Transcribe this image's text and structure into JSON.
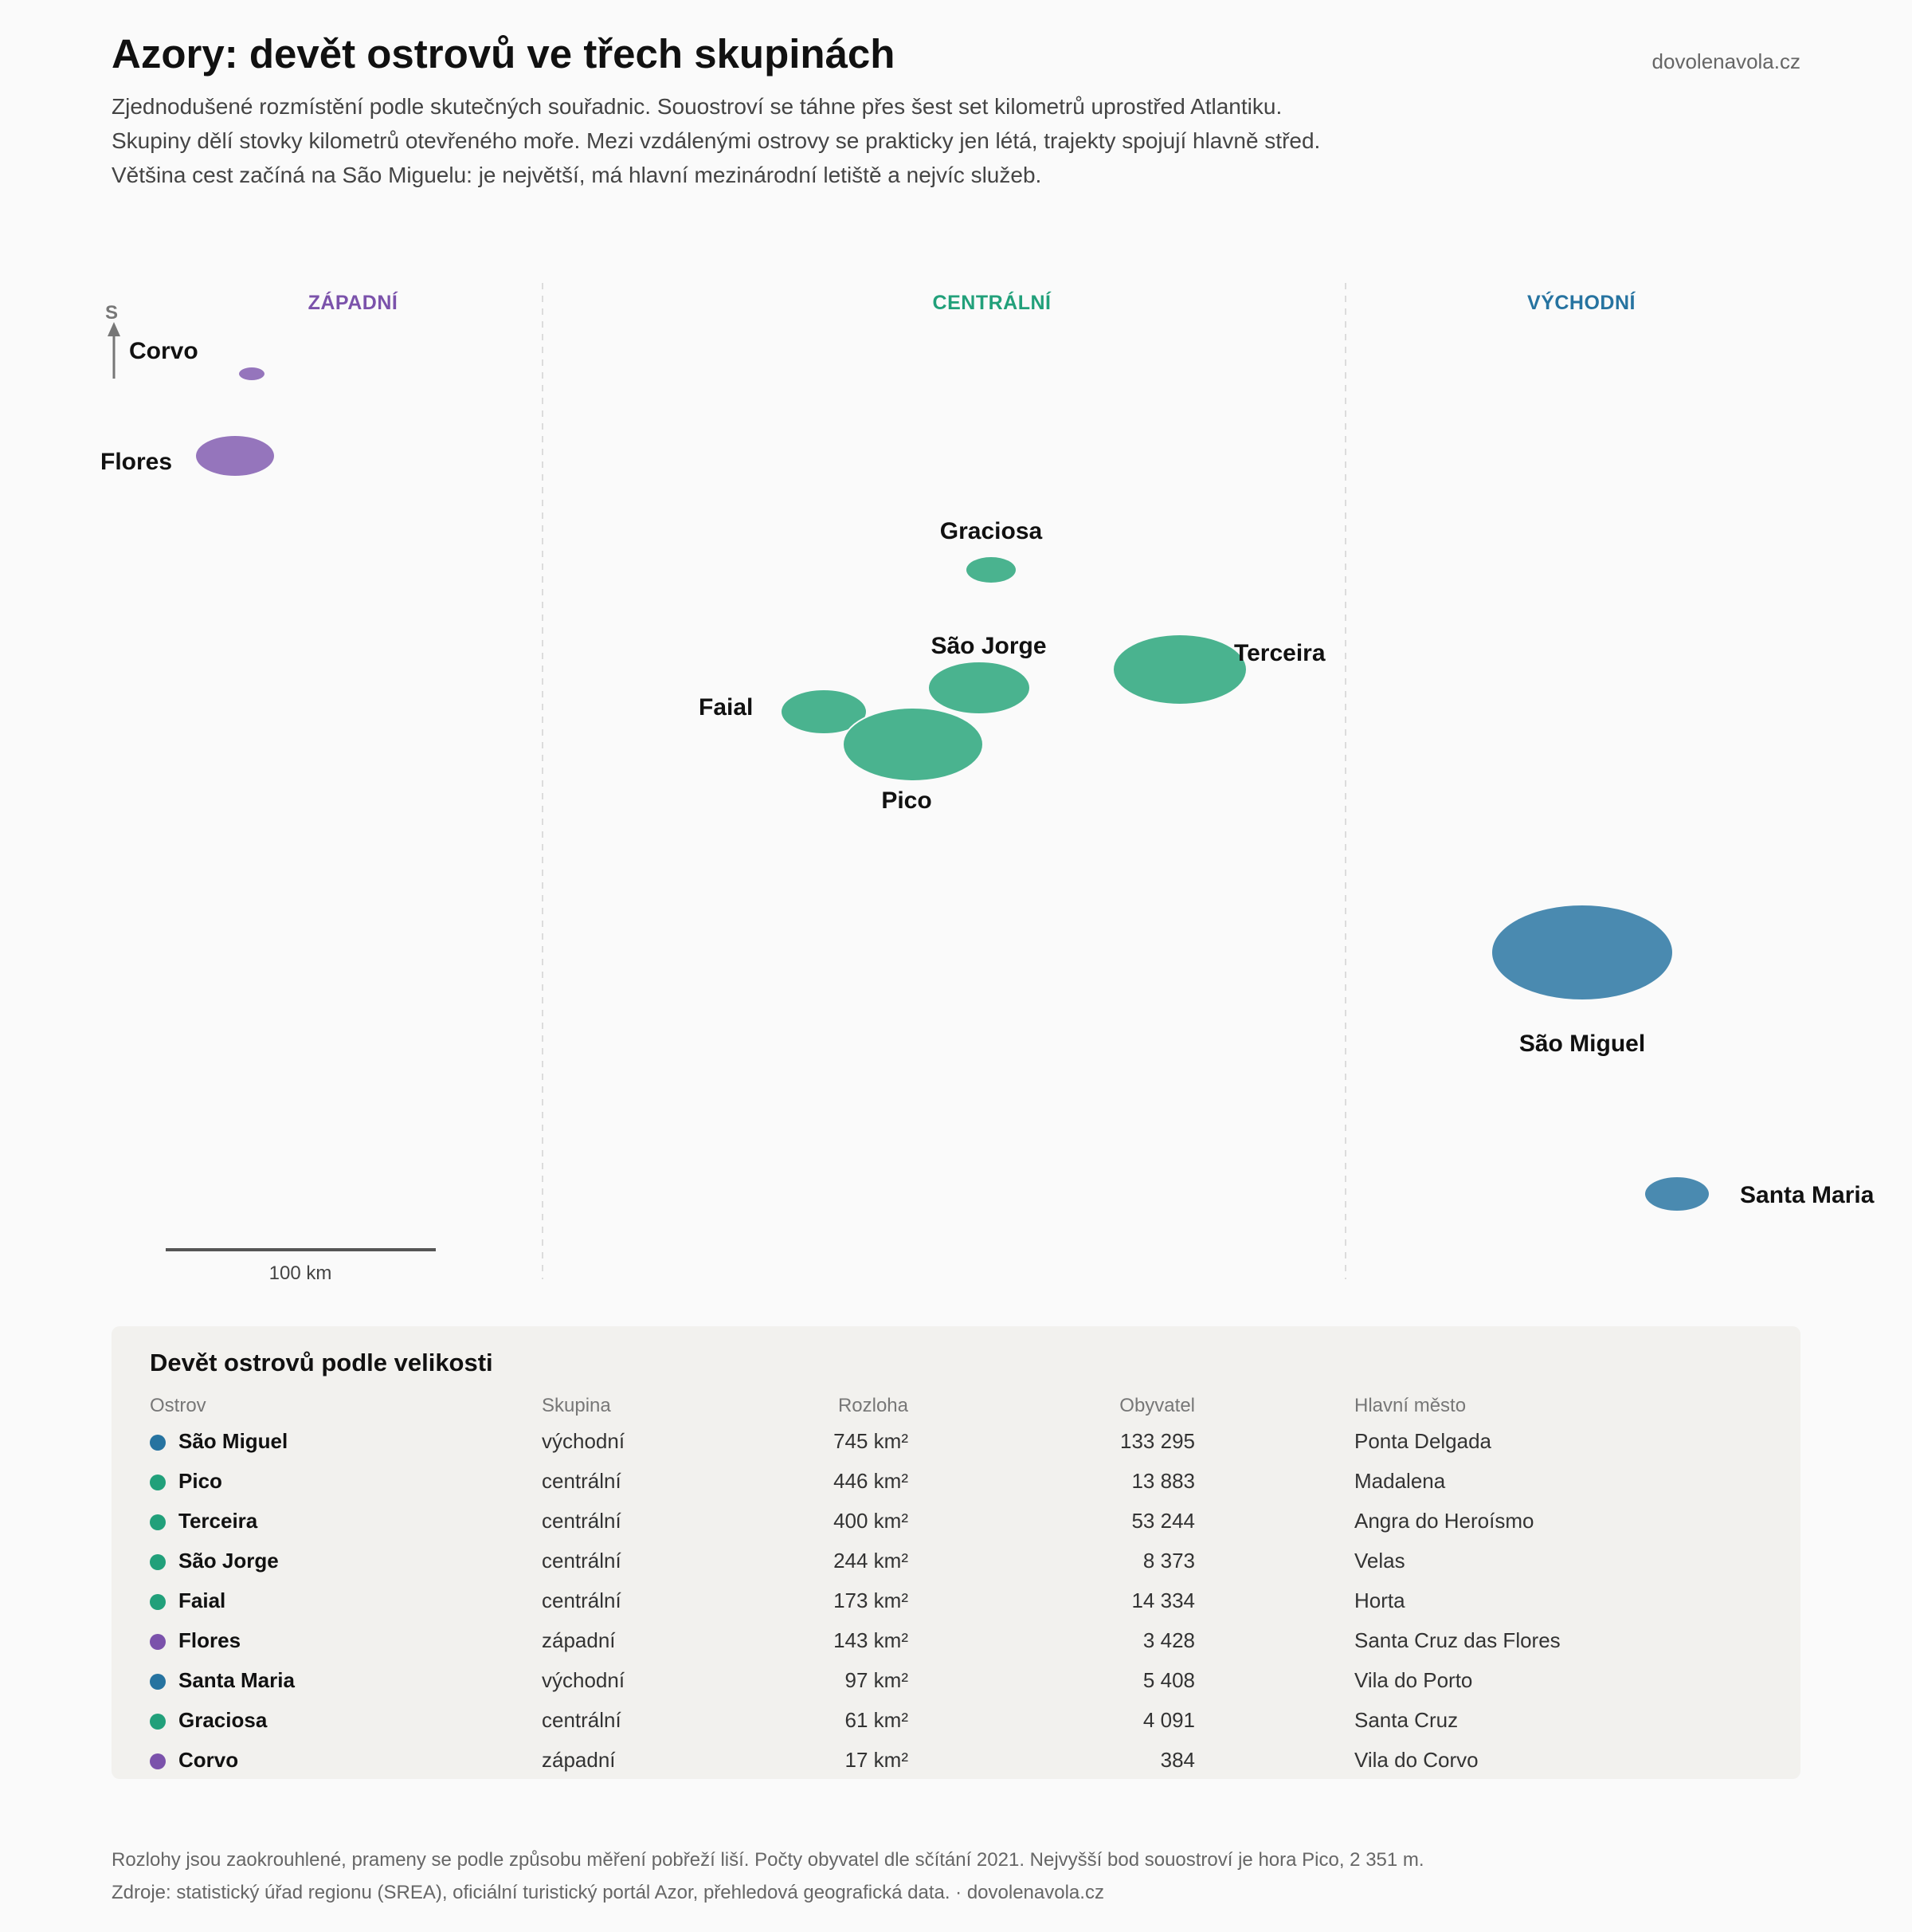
{
  "header": {
    "title": "Azory: devět ostrovů ve třech skupinách",
    "brand": "dovolenavola.cz",
    "subtitle_lines": [
      "Zjednodušené rozmístění podle skutečných souřadnic. Souostroví se táhne přes šest set kilometrů uprostřed Atlantiku.",
      "Skupiny dělí stovky kilometrů otevřeného moře. Mezi vzdálenými ostrovy se prakticky jen létá, trajekty spojují hlavně střed.",
      "Většina cest začíná na São Miguelu: je největší, má hlavní mezinárodní letiště a nejvíc služeb."
    ]
  },
  "colors": {
    "west": "#7b52ab",
    "central": "#21a07a",
    "east": "#2673a0",
    "west_fill": "#9575bc",
    "central_fill": "#4ab38f",
    "east_fill": "#4a8ab0"
  },
  "map": {
    "groups": {
      "west": "ZÁPADNÍ",
      "central": "CENTRÁLNÍ",
      "east": "VÝCHODNÍ"
    },
    "north_label": "S",
    "scale_label": "100 km",
    "islands": {
      "corvo": "Corvo",
      "flores": "Flores",
      "graciosa": "Graciosa",
      "sao_jorge": "São Jorge",
      "terceira": "Terceira",
      "faial": "Faial",
      "pico": "Pico",
      "sao_miguel": "São Miguel",
      "santa_maria": "Santa Maria"
    }
  },
  "table": {
    "title": "Devět ostrovů podle velikosti",
    "headers": {
      "island": "Ostrov",
      "group": "Skupina",
      "area": "Rozloha",
      "population": "Obyvatel",
      "capital": "Hlavní město"
    },
    "rows": [
      {
        "name": "São Miguel",
        "group": "východní",
        "area": "745 km²",
        "population": "133 295",
        "capital": "Ponta Delgada",
        "color": "#2673a0"
      },
      {
        "name": "Pico",
        "group": "centrální",
        "area": "446 km²",
        "population": "13 883",
        "capital": "Madalena",
        "color": "#21a07a"
      },
      {
        "name": "Terceira",
        "group": "centrální",
        "area": "400 km²",
        "population": "53 244",
        "capital": "Angra do Heroísmo",
        "color": "#21a07a"
      },
      {
        "name": "São Jorge",
        "group": "centrální",
        "area": "244 km²",
        "population": "8 373",
        "capital": "Velas",
        "color": "#21a07a"
      },
      {
        "name": "Faial",
        "group": "centrální",
        "area": "173 km²",
        "population": "14 334",
        "capital": "Horta",
        "color": "#21a07a"
      },
      {
        "name": "Flores",
        "group": "západní",
        "area": "143 km²",
        "population": "3 428",
        "capital": "Santa Cruz das Flores",
        "color": "#7b52ab"
      },
      {
        "name": "Santa Maria",
        "group": "východní",
        "area": "97 km²",
        "population": "5 408",
        "capital": "Vila do Porto",
        "color": "#2673a0"
      },
      {
        "name": "Graciosa",
        "group": "centrální",
        "area": "61 km²",
        "population": "4 091",
        "capital": "Santa Cruz",
        "color": "#21a07a"
      },
      {
        "name": "Corvo",
        "group": "západní",
        "area": "17 km²",
        "population": "384",
        "capital": "Vila do Corvo",
        "color": "#7b52ab"
      }
    ]
  },
  "footer": {
    "note": "Rozlohy jsou zaokrouhlené, prameny se podle způsobu měření pobřeží liší. Počty obyvatel dle sčítání 2021. Nejvyšší bod souostroví je hora Pico, 2 351 m.",
    "sources": "Zdroje: statistický úřad regionu (SREA), oficiální turistický portál Azor, přehledová geografická data. · dovolenavola.cz"
  }
}
